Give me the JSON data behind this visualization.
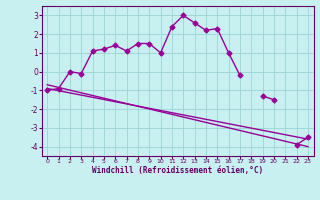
{
  "x": [
    0,
    1,
    2,
    3,
    4,
    5,
    6,
    7,
    8,
    9,
    10,
    11,
    12,
    13,
    14,
    15,
    16,
    17,
    18,
    19,
    20,
    21,
    22,
    23
  ],
  "line1": [
    -1.0,
    -0.9,
    0.0,
    -0.1,
    1.1,
    1.2,
    1.4,
    1.1,
    1.5,
    1.5,
    1.0,
    2.4,
    3.0,
    2.6,
    2.2,
    2.3,
    1.0,
    -0.2,
    null,
    -1.3,
    -1.5,
    null,
    -3.9,
    -3.5
  ],
  "line3_x": [
    0,
    23
  ],
  "line3_y": [
    -0.9,
    -3.6
  ],
  "line4_x": [
    0,
    23
  ],
  "line4_y": [
    -0.7,
    -4.0
  ],
  "background_color": "#c8f0f0",
  "grid_color": "#a0d8d8",
  "line_color": "#990099",
  "xlabel": "Windchill (Refroidissement éolien,°C)",
  "xlabel_color": "#660066",
  "tick_color": "#660066",
  "xlim": [
    -0.5,
    23.5
  ],
  "ylim": [
    -4.5,
    3.5
  ],
  "yticks": [
    -4,
    -3,
    -2,
    -1,
    0,
    1,
    2,
    3
  ],
  "xticks": [
    0,
    1,
    2,
    3,
    4,
    5,
    6,
    7,
    8,
    9,
    10,
    11,
    12,
    13,
    14,
    15,
    16,
    17,
    18,
    19,
    20,
    21,
    22,
    23
  ]
}
